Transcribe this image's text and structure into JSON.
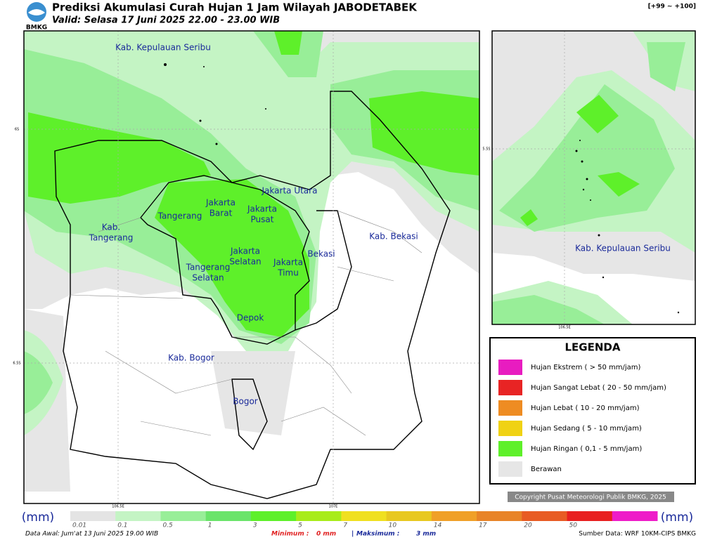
{
  "header": {
    "title": "Prediksi Akumulasi Curah Hujan 1 Jam Wilayah JABODETABEK",
    "subtitle": "Valid: Selasa 17 Juni 2025 22.00 - 23.00 WIB",
    "logo": "BMKG",
    "range": "[+99 ~ +100]"
  },
  "map": {
    "regions": [
      {
        "lines": [
          "Kab. Kepulauan Seribu"
        ]
      },
      {
        "lines": [
          "Jakarta Utara"
        ]
      },
      {
        "lines": [
          "Jakarta",
          "Barat"
        ]
      },
      {
        "lines": [
          "Jakarta",
          "Pusat"
        ]
      },
      {
        "lines": [
          "Tangerang"
        ]
      },
      {
        "lines": [
          "Kab.",
          "Tangerang"
        ]
      },
      {
        "lines": [
          "Kab. Bekasi"
        ]
      },
      {
        "lines": [
          "Jakarta",
          "Selatan"
        ]
      },
      {
        "lines": [
          "Jakarta",
          "Timu"
        ]
      },
      {
        "lines": [
          "Bekasi"
        ]
      },
      {
        "lines": [
          "Tangerang",
          "Selatan"
        ]
      },
      {
        "lines": [
          "Depok"
        ]
      },
      {
        "lines": [
          "Kab. Bogor"
        ]
      },
      {
        "lines": [
          "Bogor"
        ]
      }
    ],
    "lat_ticks": [
      "6S",
      "6.5S"
    ],
    "lon_ticks": [
      "106.5E",
      "107E"
    ]
  },
  "inset": {
    "label": "Kab. Kepulauan Seribu",
    "lat_tick": "5.5S",
    "lon_tick": "106.5E"
  },
  "legend": {
    "title": "LEGENDA",
    "items": [
      {
        "label": "Hujan Ekstrem ( > 50 mm/jam)",
        "color": "#e81cc0"
      },
      {
        "label": "Hujan Sangat Lebat ( 20 - 50 mm/jam)",
        "color": "#e82424"
      },
      {
        "label": "Hujan Lebat ( 10 - 20 mm/jam)",
        "color": "#ee8c22"
      },
      {
        "label": "Hujan Sedang ( 5 - 10 mm/jam)",
        "color": "#f0d214"
      },
      {
        "label": "Hujan Ringan ( 0,1 - 5 mm/jam)",
        "color": "#5ef02a"
      },
      {
        "label": "Berawan",
        "color": "#e6e6e6"
      }
    ]
  },
  "colorbar": {
    "unit_left": "(mm)",
    "unit_right": "(mm)",
    "labels": [
      "0.01",
      "0.1",
      "0.5",
      "1",
      "3",
      "5",
      "7",
      "10",
      "14",
      "17",
      "20",
      "50"
    ],
    "colors": [
      "#e4e4e4",
      "#c4f4c4",
      "#98ee98",
      "#6ae46a",
      "#5ef02a",
      "#a8ec1a",
      "#f0e020",
      "#e8c820",
      "#f0a028",
      "#e88428",
      "#e85c24",
      "#e82020",
      "#ee1cc8"
    ]
  },
  "copyright": "Copyright Pusat Meteorologi Publik BMKG, 2025",
  "footer": {
    "start": "Data Awal: Jum'at 13 Juni 2025 19.00 WIB",
    "min_label": "Minimum :",
    "min_value": "0 mm",
    "separator": "|",
    "max_label": "Maksimum :",
    "max_value": "3 mm",
    "source": "Sumber Data: WRF 10KM-CIPS BMKG"
  }
}
